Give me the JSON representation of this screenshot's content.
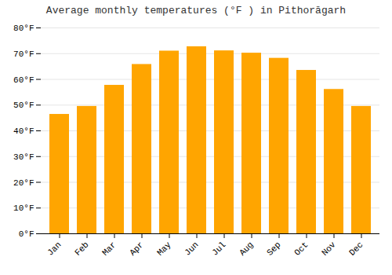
{
  "chart_data": {
    "type": "bar",
    "title": "Average monthly temperatures (°F ) in Pithorāgarh",
    "categories": [
      "Jan",
      "Feb",
      "Mar",
      "Apr",
      "May",
      "Jun",
      "Jul",
      "Aug",
      "Sep",
      "Oct",
      "Nov",
      "Dec"
    ],
    "values": [
      46.4,
      49.5,
      57.7,
      65.8,
      71.0,
      72.7,
      71.1,
      70.2,
      68.2,
      63.5,
      56.1,
      49.5
    ],
    "color": "#FFA500",
    "ylim": [
      0,
      80
    ],
    "yticks": [
      {
        "value": 0,
        "label": "0°F"
      },
      {
        "value": 10,
        "label": "10°F"
      },
      {
        "value": 20,
        "label": "20°F"
      },
      {
        "value": 30,
        "label": "30°F"
      },
      {
        "value": 40,
        "label": "40°F"
      },
      {
        "value": 50,
        "label": "50°F"
      },
      {
        "value": 60,
        "label": "60°F"
      },
      {
        "value": 70,
        "label": "70°F"
      },
      {
        "value": 80,
        "label": "80°F"
      }
    ],
    "grid": true
  }
}
